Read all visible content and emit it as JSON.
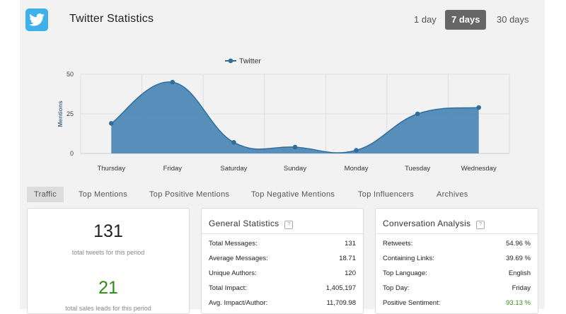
{
  "header": {
    "title": "Twitter Statistics",
    "ranges": [
      "1 day",
      "7 days",
      "30 days"
    ],
    "active_range": "7 days"
  },
  "chart_data": {
    "type": "area",
    "categories": [
      "Thursday",
      "Friday",
      "Saturday",
      "Sunday",
      "Monday",
      "Tuesday",
      "Wednesday"
    ],
    "series": [
      {
        "name": "Twitter",
        "values": [
          19,
          45,
          7,
          4,
          2,
          25,
          29
        ]
      }
    ],
    "ylabel": "Mentions",
    "xlabel": "",
    "yticks": [
      0,
      25,
      50
    ],
    "ylim": [
      0,
      50
    ],
    "legend": "top-center",
    "grid": true,
    "color": "#4a87b5"
  },
  "tabs": [
    "Traffic",
    "Top Mentions",
    "Top Positive Mentions",
    "Top Negative Mentions",
    "Top Influencers",
    "Archives"
  ],
  "summary": {
    "total_tweets": "131",
    "total_tweets_caption": "total tweets for this period",
    "sales_leads": "21",
    "sales_leads_caption": "total sales leads for this period"
  },
  "general_statistics": {
    "title": "General Statistics",
    "rows": [
      {
        "label": "Total Messages:",
        "value": "131"
      },
      {
        "label": "Average Messages:",
        "value": "18.71"
      },
      {
        "label": "Unique Authors:",
        "value": "120"
      },
      {
        "label": "Total Impact:",
        "value": "1,405,197"
      },
      {
        "label": "Avg. Impact/Author:",
        "value": "11,709.98"
      }
    ]
  },
  "conversation_analysis": {
    "title": "Conversation Analysis",
    "rows": [
      {
        "label": "Retweets:",
        "value": "54.96 %"
      },
      {
        "label": "Containing Links:",
        "value": "39.69 %"
      },
      {
        "label": "Top Language:",
        "value": "English"
      },
      {
        "label": "Top Day:",
        "value": "Friday"
      },
      {
        "label": "Positive Sentiment:",
        "value": "93.13 %"
      }
    ]
  },
  "colors": {
    "accent": "#4a87b5",
    "positive": "#3a8a1a",
    "twitter": "#3fb0e8"
  },
  "icons": {
    "logo": "twitter-bird-icon",
    "help": "help-icon"
  }
}
